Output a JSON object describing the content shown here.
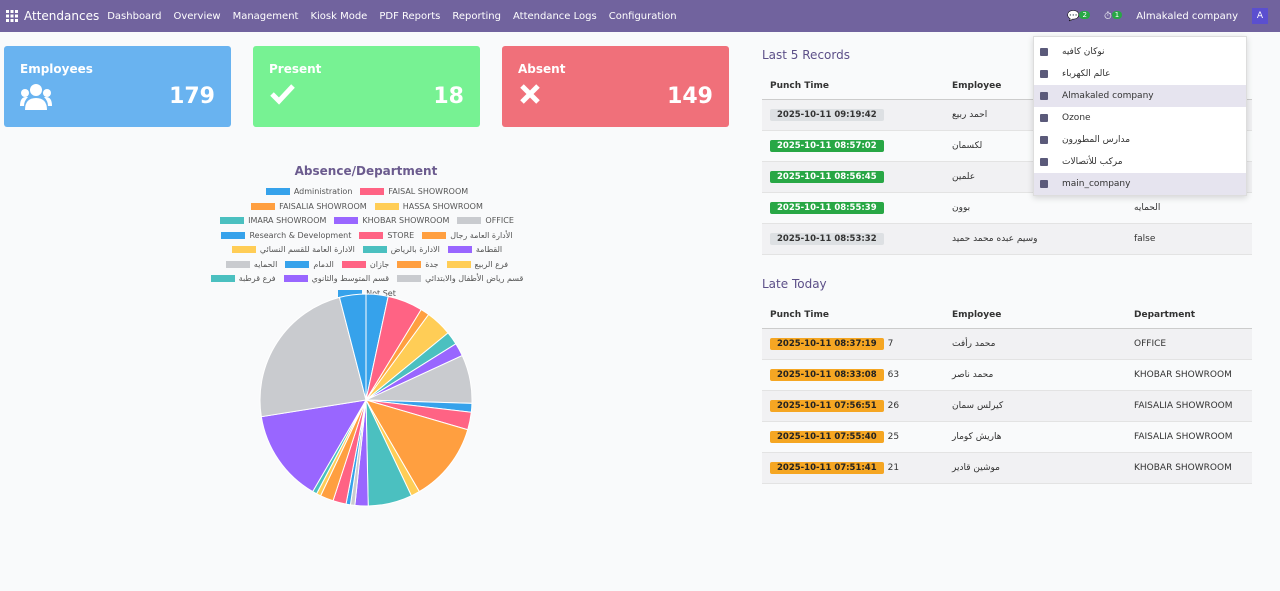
{
  "nav": {
    "app": "Attendances",
    "menu": [
      "Dashboard",
      "Overview",
      "Management",
      "Kiosk Mode",
      "PDF Reports",
      "Reporting",
      "Attendance Logs",
      "Configuration"
    ],
    "messages_badge": "2",
    "activity_badge": "1",
    "company": "Almakaled company",
    "avatar": "A"
  },
  "cards": [
    {
      "title": "Employees",
      "value": "179"
    },
    {
      "title": "Present",
      "value": "18"
    },
    {
      "title": "Absent",
      "value": "149"
    }
  ],
  "chart_data": {
    "type": "pie",
    "title": "Absence/Department",
    "categories": [
      "Administration",
      "FAISAL SHOWROOM",
      "FAISALIA SHOWROOM",
      "HASSA SHOWROOM",
      "IMARA SHOWROOM",
      "KHOBAR SHOWROOM",
      "OFFICE",
      "Research & Development",
      "STORE",
      "الأدارة العامة رجال",
      "الادارة العامة للقسم النسائي",
      "الادارة بالرياض",
      "القطامة",
      "الحمايه",
      "الدمام",
      "جازان",
      "جدة",
      "فرع الربيع",
      "فرع قرطبة",
      "قسم المتوسط والثانوي",
      "قسم رياض الأطفال والابتدائي",
      "Not Set"
    ],
    "values": [
      5,
      8,
      2,
      6,
      3,
      3,
      11,
      2,
      4,
      18,
      2,
      10,
      3,
      1,
      1,
      3,
      3,
      1,
      1,
      21,
      35,
      6
    ],
    "colors": [
      "#36a2eb",
      "#ff6384",
      "#ff9f40",
      "#ffcd56",
      "#4bc0c0",
      "#9966ff",
      "#c9cbcf"
    ]
  },
  "last5": {
    "title": "Last 5 Records",
    "headers": [
      "Punch Time",
      "Employee"
    ],
    "rows": [
      {
        "time": "2025-10-11 09:19:42",
        "employee": "احمد ربيع"
      },
      {
        "time": "2025-10-11 08:57:02",
        "employee": "لكسمان"
      },
      {
        "time": "2025-10-11 08:56:45",
        "employee": "علمين"
      },
      {
        "time": "2025-10-11 08:55:39",
        "employee": "بوون",
        "department": "الحمايه"
      },
      {
        "time": "2025-10-11 08:53:32",
        "employee": "وسيم عبده محمد حميد",
        "department": "false"
      }
    ]
  },
  "companies": [
    "نوكان كافيه",
    "عالم الكهرباء",
    "Almakaled company",
    "Ozone",
    "مدارس المطورون",
    "مركب للأتصالات",
    "main_company"
  ],
  "late": {
    "title": "Late Today",
    "headers": [
      "Punch Time",
      "Employee",
      "Department"
    ],
    "rows": [
      {
        "time": "2025-10-11 08:37:19",
        "minutes": "7",
        "employee": "محمد رأفت",
        "department": "OFFICE"
      },
      {
        "time": "2025-10-11 08:33:08",
        "minutes": "63",
        "employee": "محمد ناصر",
        "department": "KHOBAR SHOWROOM"
      },
      {
        "time": "2025-10-11 07:56:51",
        "minutes": "26",
        "employee": "كيرلس سمان",
        "department": "FAISALIA SHOWROOM"
      },
      {
        "time": "2025-10-11 07:55:40",
        "minutes": "25",
        "employee": "هاريش كومار",
        "department": "FAISALIA SHOWROOM"
      },
      {
        "time": "2025-10-11 07:51:41",
        "minutes": "21",
        "employee": "موشين قادير",
        "department": "KHOBAR SHOWROOM"
      }
    ]
  }
}
